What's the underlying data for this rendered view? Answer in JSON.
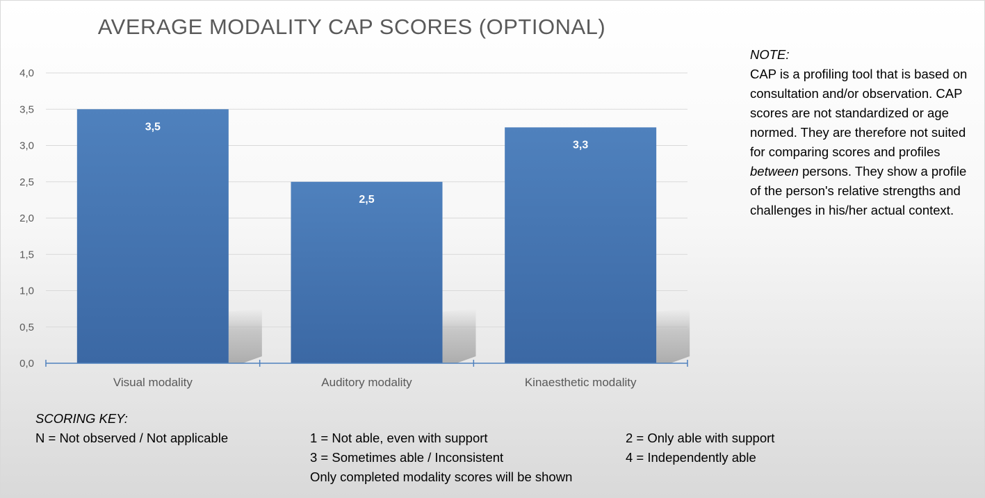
{
  "chart_data": {
    "type": "bar",
    "title": "AVERAGE MODALITY CAP SCORES (OPTIONAL)",
    "categories": [
      "Visual modality",
      "Auditory modality",
      "Kinaesthetic modality"
    ],
    "values": [
      3.5,
      2.5,
      3.25
    ],
    "data_labels": [
      "3,5",
      "2,5",
      "3,3"
    ],
    "ylim": [
      0,
      4
    ],
    "yticks": [
      "0,0",
      "0,5",
      "1,0",
      "1,5",
      "2,0",
      "2,5",
      "3,0",
      "3,5",
      "4,0"
    ],
    "ytick_values": [
      0,
      0.5,
      1,
      1.5,
      2,
      2.5,
      3,
      3.5,
      4
    ],
    "grid": true,
    "legend": "none",
    "bar_color": "#4a7ebb",
    "xlabel": "",
    "ylabel": ""
  },
  "note": {
    "heading": "NOTE:",
    "body_1": "CAP is a profiling tool that is based on consultation and/or observation. CAP scores are not standardized or age normed. They are therefore not suited for comparing scores and profiles ",
    "emphasis": "between",
    "body_2": " persons. They show a profile of the person's relative strengths and challenges in his/her actual context."
  },
  "scoring_key": {
    "heading": "SCORING KEY:",
    "n": "N = Not observed / Not applicable",
    "one": "1 = Not able, even with support",
    "two": "2 = Only able with support",
    "three": "3 = Sometimes able / Inconsistent",
    "four": "4 = Independently able",
    "footnote": "Only completed modality scores will be shown"
  }
}
